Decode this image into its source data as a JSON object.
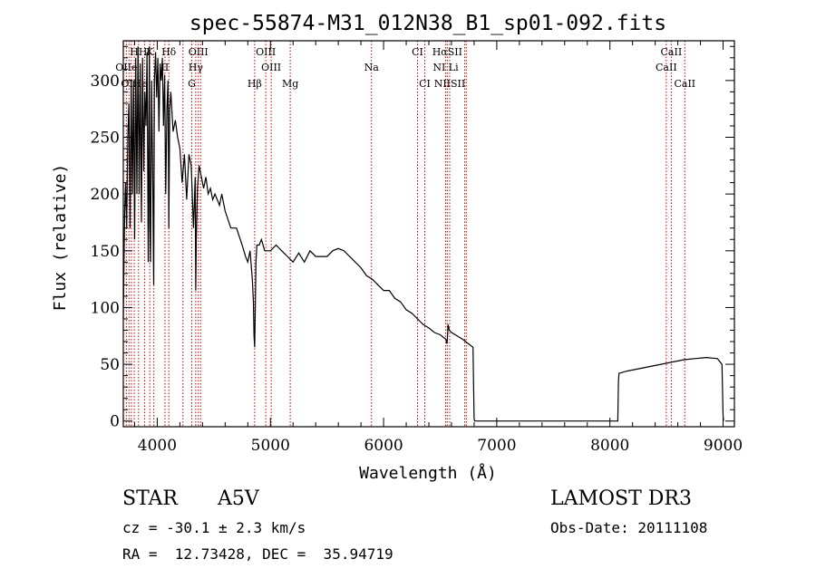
{
  "chart_data": {
    "type": "line",
    "title": "spec-55874-M31_012N38_B1_sp01-092.fits",
    "xlabel": "Wavelength (Å)",
    "ylabel": "Flux (relative)",
    "xlim": [
      3700,
      9100
    ],
    "ylim": [
      -5,
      335
    ],
    "xticks": [
      4000,
      5000,
      6000,
      7000,
      8000,
      9000
    ],
    "yticks": [
      0,
      50,
      100,
      150,
      200,
      250,
      300
    ],
    "spectrum": {
      "x": [
        3700,
        3705,
        3712,
        3720,
        3730,
        3740,
        3750,
        3760,
        3770,
        3780,
        3790,
        3800,
        3810,
        3820,
        3830,
        3840,
        3850,
        3860,
        3870,
        3880,
        3890,
        3900,
        3910,
        3920,
        3930,
        3935,
        3940,
        3950,
        3960,
        3968,
        3975,
        3985,
        3995,
        4005,
        4015,
        4025,
        4035,
        4045,
        4055,
        4065,
        4075,
        4085,
        4095,
        4102,
        4110,
        4120,
        4140,
        4160,
        4180,
        4200,
        4220,
        4240,
        4260,
        4280,
        4300,
        4320,
        4335,
        4340,
        4345,
        4355,
        4370,
        4390,
        4410,
        4430,
        4450,
        4470,
        4490,
        4510,
        4530,
        4550,
        4570,
        4600,
        4650,
        4700,
        4750,
        4780,
        4800,
        4820,
        4840,
        4850,
        4855,
        4861,
        4866,
        4872,
        4880,
        4900,
        4920,
        4950,
        5000,
        5050,
        5100,
        5150,
        5200,
        5250,
        5300,
        5350,
        5400,
        5450,
        5500,
        5550,
        5600,
        5650,
        5700,
        5750,
        5800,
        5850,
        5900,
        5950,
        6000,
        6050,
        6100,
        6150,
        6200,
        6250,
        6300,
        6350,
        6400,
        6450,
        6500,
        6550,
        6560,
        6565,
        6570,
        6580,
        6600,
        6650,
        6700,
        6750,
        6790,
        6800,
        6805,
        6850,
        7000,
        7200,
        7400,
        7600,
        7800,
        8000,
        8070,
        8075,
        8080,
        8150,
        8250,
        8350,
        8450,
        8550,
        8650,
        8750,
        8850,
        8950,
        8990,
        9000,
        9005
      ],
      "y": [
        90,
        130,
        185,
        210,
        170,
        250,
        280,
        170,
        300,
        200,
        300,
        160,
        320,
        200,
        330,
        200,
        315,
        175,
        320,
        220,
        290,
        260,
        325,
        140,
        330,
        175,
        140,
        300,
        210,
        120,
        300,
        325,
        285,
        320,
        255,
        315,
        300,
        320,
        260,
        305,
        200,
        275,
        300,
        170,
        275,
        290,
        255,
        265,
        250,
        240,
        210,
        235,
        195,
        235,
        225,
        170,
        215,
        115,
        160,
        205,
        225,
        215,
        205,
        215,
        200,
        205,
        195,
        200,
        195,
        190,
        200,
        185,
        170,
        170,
        155,
        145,
        140,
        150,
        125,
        105,
        75,
        65,
        95,
        140,
        155,
        155,
        160,
        150,
        150,
        155,
        150,
        145,
        140,
        148,
        140,
        150,
        145,
        145,
        145,
        150,
        152,
        150,
        145,
        140,
        135,
        128,
        125,
        120,
        115,
        115,
        108,
        105,
        98,
        95,
        90,
        85,
        82,
        78,
        76,
        72,
        68,
        75,
        85,
        80,
        78,
        75,
        72,
        68,
        65,
        2,
        0,
        0,
        0,
        0,
        0,
        0,
        0,
        0,
        0,
        35,
        42,
        44,
        46,
        48,
        50,
        52,
        54,
        55,
        56,
        55,
        50,
        5,
        0
      ]
    },
    "lines": [
      {
        "label": "HH",
        "wl": 3835,
        "row": 1
      },
      {
        "label": "K",
        "wl": 3934,
        "row": 1
      },
      {
        "label": "Hδ",
        "wl": 4102,
        "row": 1
      },
      {
        "label": "OIII",
        "wl": 4363,
        "row": 1
      },
      {
        "label": "OIII",
        "wl": 4959,
        "row": 1
      },
      {
        "label": "CI",
        "wl": 6300,
        "row": 1
      },
      {
        "label": "HαSII",
        "wl": 6563,
        "row": 1
      },
      {
        "label": "CaII",
        "wl": 8542,
        "row": 1
      },
      {
        "label": "OIIe",
        "wl": 3727,
        "row": 2
      },
      {
        "label": "II",
        "wl": 4068,
        "row": 2
      },
      {
        "label": "Hγ",
        "wl": 4340,
        "row": 2
      },
      {
        "label": "OIII",
        "wl": 5007,
        "row": 2
      },
      {
        "label": "Na",
        "wl": 5893,
        "row": 2
      },
      {
        "label": "NI Li",
        "wl": 6548,
        "row": 2
      },
      {
        "label": "CaII",
        "wl": 8498,
        "row": 2
      },
      {
        "label": "OIHe",
        "wl": 3797,
        "row": 3
      },
      {
        "label": "G",
        "wl": 4305,
        "row": 3
      },
      {
        "label": "Hβ",
        "wl": 4861,
        "row": 3
      },
      {
        "label": "Mg",
        "wl": 5175,
        "row": 3
      },
      {
        "label": "CI",
        "wl": 6364,
        "row": 3
      },
      {
        "label": "NIISII",
        "wl": 6584,
        "row": 3
      },
      {
        "label": "CaII",
        "wl": 8662,
        "row": 3
      }
    ],
    "extra_line_wl": [
      3750,
      3771,
      3889,
      3970,
      4227,
      4383,
      6717,
      6731
    ]
  },
  "info": {
    "class": "STAR",
    "subclass": "A5V",
    "survey": "LAMOST DR3",
    "cz": "cz = -30.1 ± 2.3 km/s",
    "obs_date": "Obs-Date: 20111108",
    "radec": "RA =  12.73428, DEC =  35.94719"
  },
  "colors": {
    "line_marker": "#cc0000",
    "axis": "#000000",
    "spectrum": "#000000"
  }
}
